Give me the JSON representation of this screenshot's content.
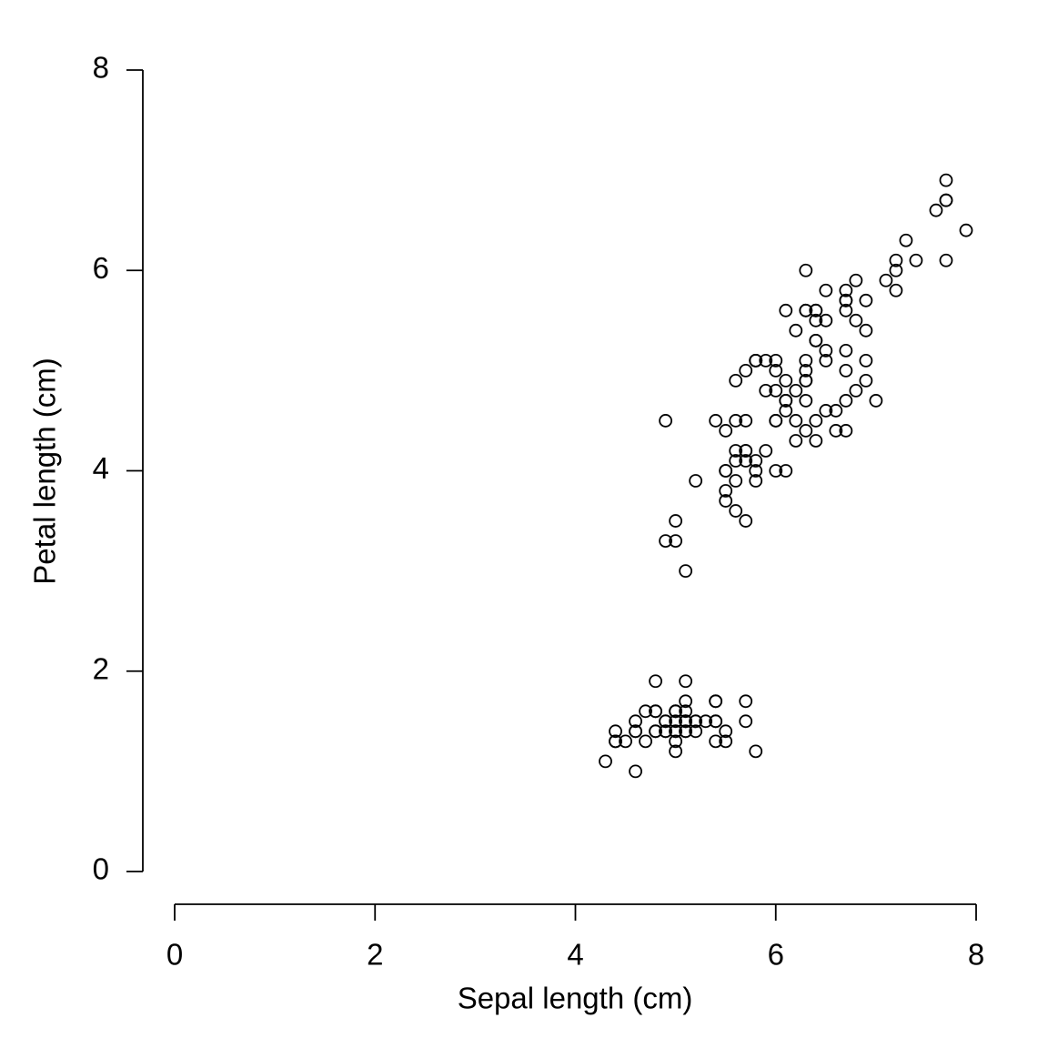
{
  "chart_data": {
    "type": "scatter",
    "x_label": "Sepal length (cm)",
    "y_label": "Petal length (cm)",
    "xlim": [
      0,
      8
    ],
    "ylim": [
      0,
      8
    ],
    "xticks": [
      0,
      2,
      4,
      6,
      8
    ],
    "yticks": [
      0,
      2,
      4,
      6,
      8
    ],
    "color": "#000000",
    "grid": false,
    "x": [
      5.1,
      4.9,
      4.7,
      4.6,
      5.0,
      5.4,
      4.6,
      5.0,
      4.4,
      4.9,
      5.4,
      4.8,
      4.8,
      4.3,
      5.8,
      5.7,
      5.4,
      5.1,
      5.7,
      5.1,
      5.4,
      5.1,
      4.6,
      5.1,
      4.8,
      5.0,
      5.0,
      5.2,
      5.2,
      4.7,
      4.8,
      5.4,
      5.2,
      5.5,
      4.9,
      5.0,
      5.5,
      4.9,
      4.4,
      5.1,
      5.0,
      4.5,
      4.4,
      5.0,
      5.1,
      4.8,
      5.1,
      4.6,
      5.3,
      5.0,
      7.0,
      6.4,
      6.9,
      5.5,
      6.5,
      5.7,
      6.3,
      4.9,
      6.6,
      5.2,
      5.0,
      5.9,
      6.0,
      6.1,
      5.6,
      6.7,
      5.6,
      5.8,
      6.2,
      5.6,
      5.9,
      6.1,
      6.3,
      6.1,
      6.4,
      6.6,
      6.8,
      6.7,
      6.0,
      5.7,
      5.5,
      5.5,
      5.8,
      6.0,
      5.4,
      6.0,
      6.7,
      6.3,
      5.6,
      5.5,
      5.5,
      6.1,
      5.8,
      5.0,
      5.6,
      5.7,
      5.7,
      6.2,
      5.1,
      5.7,
      6.3,
      5.8,
      7.1,
      6.3,
      6.5,
      7.6,
      4.9,
      7.3,
      6.7,
      7.2,
      6.5,
      6.4,
      6.8,
      5.7,
      5.8,
      6.4,
      6.5,
      7.7,
      7.7,
      6.0,
      6.9,
      5.6,
      7.7,
      6.3,
      6.7,
      7.2,
      6.2,
      6.1,
      6.4,
      7.2,
      7.4,
      7.9,
      6.4,
      6.3,
      6.1,
      7.7,
      6.3,
      6.4,
      6.0,
      6.9,
      6.7,
      6.9,
      5.8,
      6.8,
      6.7,
      6.7,
      6.3,
      6.5,
      6.2,
      5.9
    ],
    "values": [
      1.4,
      1.4,
      1.3,
      1.5,
      1.4,
      1.7,
      1.4,
      1.5,
      1.4,
      1.5,
      1.5,
      1.6,
      1.4,
      1.1,
      1.2,
      1.5,
      1.3,
      1.4,
      1.7,
      1.5,
      1.7,
      1.5,
      1.0,
      1.7,
      1.9,
      1.6,
      1.6,
      1.5,
      1.4,
      1.6,
      1.6,
      1.5,
      1.5,
      1.4,
      1.5,
      1.2,
      1.3,
      1.4,
      1.3,
      1.5,
      1.3,
      1.3,
      1.3,
      1.6,
      1.9,
      1.4,
      1.6,
      1.4,
      1.5,
      1.4,
      4.7,
      4.5,
      4.9,
      4.0,
      4.6,
      4.5,
      4.7,
      3.3,
      4.6,
      3.9,
      3.5,
      4.2,
      4.0,
      4.7,
      3.6,
      4.4,
      4.5,
      4.1,
      4.5,
      3.9,
      4.8,
      4.0,
      4.9,
      4.7,
      4.3,
      4.4,
      4.8,
      5.0,
      4.5,
      3.5,
      3.8,
      3.7,
      3.9,
      5.1,
      4.5,
      4.5,
      4.7,
      4.4,
      4.1,
      4.0,
      4.4,
      4.6,
      4.0,
      3.3,
      4.2,
      4.2,
      4.2,
      4.3,
      3.0,
      4.1,
      6.0,
      5.1,
      5.9,
      5.6,
      5.8,
      6.6,
      4.5,
      6.3,
      5.8,
      6.1,
      5.1,
      5.3,
      5.5,
      5.0,
      5.1,
      5.3,
      5.5,
      6.7,
      6.9,
      5.0,
      5.7,
      4.9,
      6.7,
      4.9,
      5.7,
      6.0,
      4.8,
      4.9,
      5.6,
      5.8,
      6.1,
      6.4,
      5.6,
      5.1,
      5.6,
      6.1,
      5.6,
      5.5,
      4.8,
      5.4,
      5.6,
      5.1,
      5.1,
      5.9,
      5.7,
      5.2,
      5.0,
      5.2,
      5.4,
      5.1
    ]
  }
}
